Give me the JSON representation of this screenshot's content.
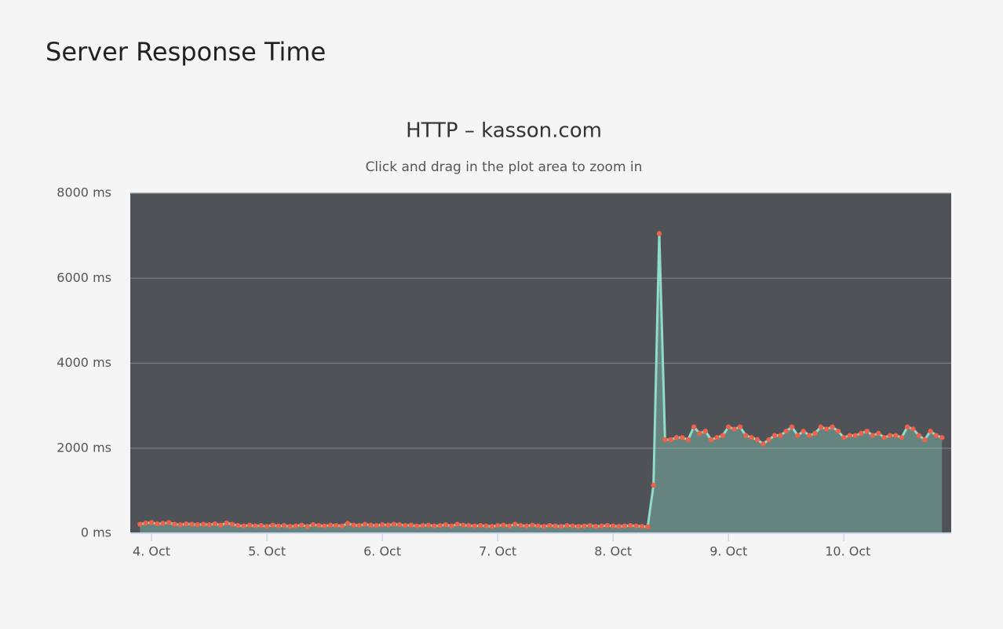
{
  "page": {
    "title": "Server Response Time"
  },
  "chart_data": {
    "type": "area-line",
    "title": "HTTP – kasson.com",
    "subtitle": "Click and drag in the plot area to zoom in",
    "x": [
      3.9,
      3.95,
      4,
      4.05,
      4.1,
      4.15,
      4.2,
      4.25,
      4.3,
      4.35,
      4.4,
      4.45,
      4.5,
      4.55,
      4.6,
      4.65,
      4.7,
      4.75,
      4.8,
      4.85,
      4.9,
      4.95,
      5,
      5.05,
      5.1,
      5.15,
      5.2,
      5.25,
      5.3,
      5.35,
      5.4,
      5.45,
      5.5,
      5.55,
      5.6,
      5.65,
      5.7,
      5.75,
      5.8,
      5.85,
      5.9,
      5.95,
      6,
      6.05,
      6.1,
      6.15,
      6.2,
      6.25,
      6.3,
      6.35,
      6.4,
      6.45,
      6.5,
      6.55,
      6.6,
      6.65,
      6.7,
      6.75,
      6.8,
      6.85,
      6.9,
      6.95,
      7,
      7.05,
      7.1,
      7.15,
      7.2,
      7.25,
      7.3,
      7.35,
      7.4,
      7.45,
      7.5,
      7.55,
      7.6,
      7.65,
      7.7,
      7.75,
      7.8,
      7.85,
      7.9,
      7.95,
      8,
      8.05,
      8.1,
      8.15,
      8.2,
      8.25,
      8.3,
      8.35,
      8.4,
      8.45,
      8.5,
      8.55,
      8.6,
      8.65,
      8.7,
      8.75,
      8.8,
      8.85,
      8.9,
      8.95,
      9,
      9.05,
      9.1,
      9.15,
      9.2,
      9.25,
      9.3,
      9.35,
      9.4,
      9.45,
      9.5,
      9.55,
      9.6,
      9.65,
      9.7,
      9.75,
      9.8,
      9.85,
      9.9,
      9.95,
      10,
      10.05,
      10.1,
      10.15,
      10.2,
      10.25,
      10.3,
      10.35,
      10.4,
      10.45,
      10.5,
      10.55,
      10.6,
      10.65,
      10.7,
      10.75,
      10.8,
      10.85
    ],
    "values": [
      210,
      240,
      250,
      220,
      230,
      250,
      210,
      200,
      220,
      210,
      200,
      210,
      200,
      220,
      190,
      240,
      210,
      180,
      170,
      190,
      170,
      180,
      160,
      190,
      170,
      180,
      160,
      170,
      190,
      160,
      200,
      180,
      170,
      190,
      180,
      170,
      230,
      190,
      180,
      210,
      190,
      180,
      200,
      190,
      210,
      200,
      180,
      190,
      170,
      180,
      190,
      170,
      180,
      200,
      170,
      210,
      190,
      180,
      170,
      180,
      170,
      160,
      180,
      190,
      170,
      210,
      180,
      170,
      190,
      170,
      160,
      180,
      170,
      160,
      180,
      170,
      160,
      170,
      180,
      160,
      170,
      180,
      170,
      160,
      170,
      180,
      170,
      160,
      150,
      1130,
      7050,
      2200,
      2200,
      2250,
      2250,
      2200,
      2500,
      2350,
      2400,
      2200,
      2250,
      2300,
      2500,
      2450,
      2500,
      2300,
      2250,
      2200,
      2100,
      2200,
      2300,
      2300,
      2400,
      2500,
      2300,
      2400,
      2300,
      2350,
      2500,
      2450,
      2500,
      2400,
      2250,
      2300,
      2300,
      2350,
      2400,
      2300,
      2350,
      2250,
      2300,
      2300,
      2250,
      2500,
      2450,
      2300,
      2200,
      2400,
      2300,
      2250
    ],
    "xlim": [
      3.816,
      10.93
    ],
    "xticks": [
      {
        "value": 4,
        "label": "4. Oct"
      },
      {
        "value": 5,
        "label": "5. Oct"
      },
      {
        "value": 6,
        "label": "6. Oct"
      },
      {
        "value": 7,
        "label": "7. Oct"
      },
      {
        "value": 8,
        "label": "8. Oct"
      },
      {
        "value": 9,
        "label": "9. Oct"
      },
      {
        "value": 10,
        "label": "10. Oct"
      }
    ],
    "ylim": [
      0,
      8000
    ],
    "yticks": [
      {
        "value": 0,
        "label": "0 ms"
      },
      {
        "value": 2000,
        "label": "2000 ms"
      },
      {
        "value": 4000,
        "label": "4000 ms"
      },
      {
        "value": 6000,
        "label": "6000 ms"
      },
      {
        "value": 8000,
        "label": "8000 ms"
      }
    ],
    "grid": true,
    "line_color": "#8fdcc8",
    "marker_color": "#f0614a",
    "area_color": "#8fdcc8",
    "plot_background": "#4f5358"
  }
}
